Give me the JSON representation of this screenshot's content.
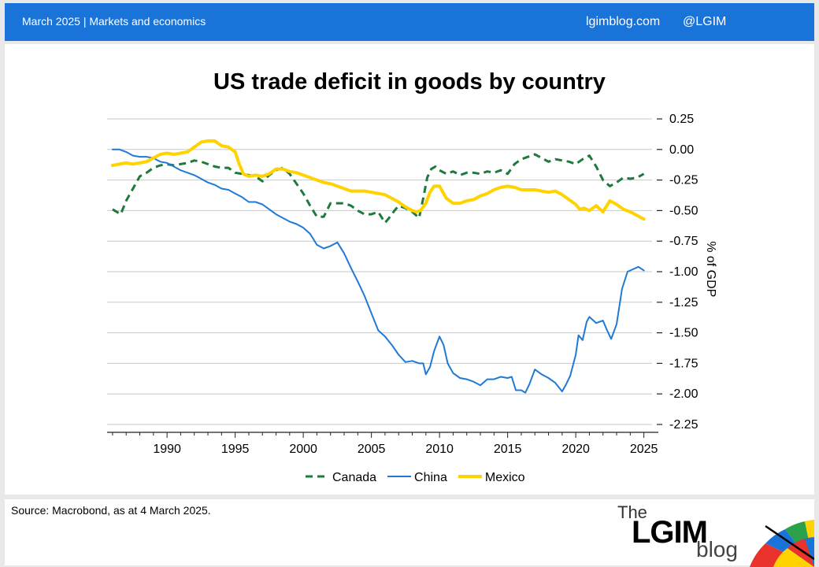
{
  "header": {
    "left_text": "March 2025 |  Markets and economics",
    "site": "lgimblog.com",
    "handle": "@LGIM"
  },
  "source": "Source: Macrobond,  as at 4 March 2025.",
  "logo": {
    "the": "The",
    "lgim": "LGIM",
    "blog": "blog"
  },
  "chart_data": {
    "type": "line",
    "title": "US trade deficit in goods by country",
    "xlabel": "",
    "ylabel": "% of GDP",
    "xlim": [
      1985.6,
      2025.6
    ],
    "ylim": [
      -2.25,
      0.25
    ],
    "x_ticks": [
      1990,
      1995,
      2000,
      2005,
      2010,
      2015,
      2020,
      2025
    ],
    "y_ticks": [
      0.25,
      0.0,
      -0.25,
      -0.5,
      -0.75,
      -1.0,
      -1.25,
      -1.5,
      -1.75,
      -2.0,
      -2.25
    ],
    "y_tick_labels": [
      "0.25",
      "0.00",
      "-0.25",
      "-0.50",
      "-0.75",
      "-1.00",
      "-1.25",
      "-1.50",
      "-1.75",
      "-2.00",
      "-2.25"
    ],
    "grid": true,
    "legend_position": "bottom",
    "colors": {
      "Canada": "#1e7a3c",
      "China": "#1f7ad6",
      "Mexico": "#ffd200"
    },
    "series": [
      {
        "name": "Canada",
        "style": "dashed",
        "x": [
          1986.0,
          1986.6,
          1987.0,
          1987.6,
          1988.0,
          1988.5,
          1989.0,
          1989.5,
          1990.0,
          1990.5,
          1991.0,
          1991.5,
          1992.0,
          1992.5,
          1993.0,
          1993.5,
          1994.0,
          1994.5,
          1995.0,
          1995.5,
          1996.0,
          1996.5,
          1997.0,
          1997.5,
          1998.0,
          1998.5,
          1999.0,
          1999.5,
          2000.0,
          2000.5,
          2001.0,
          2001.5,
          2002.0,
          2002.5,
          2003.0,
          2003.5,
          2004.0,
          2004.5,
          2005.0,
          2005.5,
          2006.0,
          2006.3,
          2006.7,
          2007.0,
          2007.5,
          2008.0,
          2008.5,
          2008.8,
          2009.1,
          2009.4,
          2009.7,
          2010.0,
          2010.5,
          2011.0,
          2011.5,
          2012.0,
          2012.5,
          2013.0,
          2013.5,
          2014.0,
          2014.5,
          2015.0,
          2015.5,
          2016.0,
          2016.5,
          2017.0,
          2017.5,
          2018.0,
          2018.5,
          2019.0,
          2019.5,
          2020.0,
          2020.5,
          2021.0,
          2021.5,
          2022.0,
          2022.5,
          2023.0,
          2023.5,
          2024.0,
          2024.5,
          2025.0
        ],
        "y": [
          -0.49,
          -0.53,
          -0.42,
          -0.3,
          -0.22,
          -0.19,
          -0.15,
          -0.13,
          -0.12,
          -0.13,
          -0.12,
          -0.11,
          -0.09,
          -0.1,
          -0.12,
          -0.14,
          -0.15,
          -0.15,
          -0.19,
          -0.2,
          -0.21,
          -0.22,
          -0.26,
          -0.21,
          -0.17,
          -0.15,
          -0.2,
          -0.28,
          -0.36,
          -0.46,
          -0.55,
          -0.55,
          -0.44,
          -0.44,
          -0.44,
          -0.46,
          -0.5,
          -0.53,
          -0.53,
          -0.51,
          -0.6,
          -0.56,
          -0.5,
          -0.46,
          -0.48,
          -0.51,
          -0.56,
          -0.4,
          -0.23,
          -0.16,
          -0.14,
          -0.17,
          -0.2,
          -0.18,
          -0.21,
          -0.19,
          -0.19,
          -0.2,
          -0.18,
          -0.19,
          -0.17,
          -0.2,
          -0.12,
          -0.08,
          -0.06,
          -0.04,
          -0.07,
          -0.1,
          -0.08,
          -0.09,
          -0.1,
          -0.12,
          -0.08,
          -0.05,
          -0.14,
          -0.25,
          -0.3,
          -0.27,
          -0.23,
          -0.24,
          -0.23,
          -0.2
        ]
      },
      {
        "name": "China",
        "style": "solid",
        "x": [
          1986.0,
          1986.5,
          1987.0,
          1987.5,
          1988.0,
          1988.5,
          1989.0,
          1989.5,
          1990.0,
          1990.5,
          1991.0,
          1991.5,
          1992.0,
          1992.5,
          1993.0,
          1993.5,
          1994.0,
          1994.5,
          1995.0,
          1995.5,
          1996.0,
          1996.5,
          1997.0,
          1997.5,
          1998.0,
          1998.5,
          1999.0,
          1999.5,
          2000.0,
          2000.5,
          2001.0,
          2001.5,
          2002.0,
          2002.5,
          2003.0,
          2003.5,
          2004.0,
          2004.5,
          2005.0,
          2005.5,
          2006.0,
          2006.5,
          2007.0,
          2007.5,
          2008.0,
          2008.5,
          2008.8,
          2009.0,
          2009.3,
          2009.6,
          2010.0,
          2010.3,
          2010.6,
          2011.0,
          2011.5,
          2012.0,
          2012.5,
          2013.0,
          2013.5,
          2014.0,
          2014.5,
          2015.0,
          2015.3,
          2015.6,
          2016.0,
          2016.3,
          2016.6,
          2017.0,
          2017.5,
          2018.0,
          2018.5,
          2019.0,
          2019.3,
          2019.6,
          2020.0,
          2020.2,
          2020.5,
          2020.8,
          2021.0,
          2021.5,
          2022.0,
          2022.3,
          2022.6,
          2023.0,
          2023.4,
          2023.8,
          2024.2,
          2024.6,
          2025.0
        ],
        "y": [
          0.0,
          0.0,
          -0.02,
          -0.05,
          -0.06,
          -0.06,
          -0.07,
          -0.1,
          -0.11,
          -0.14,
          -0.17,
          -0.19,
          -0.21,
          -0.24,
          -0.27,
          -0.29,
          -0.32,
          -0.33,
          -0.36,
          -0.39,
          -0.43,
          -0.43,
          -0.45,
          -0.49,
          -0.53,
          -0.56,
          -0.59,
          -0.61,
          -0.64,
          -0.69,
          -0.78,
          -0.81,
          -0.79,
          -0.76,
          -0.85,
          -0.97,
          -1.08,
          -1.2,
          -1.34,
          -1.48,
          -1.53,
          -1.6,
          -1.68,
          -1.74,
          -1.73,
          -1.75,
          -1.75,
          -1.84,
          -1.78,
          -1.65,
          -1.53,
          -1.6,
          -1.75,
          -1.83,
          -1.87,
          -1.88,
          -1.9,
          -1.93,
          -1.88,
          -1.88,
          -1.86,
          -1.87,
          -1.86,
          -1.97,
          -1.97,
          -1.99,
          -1.92,
          -1.8,
          -1.84,
          -1.87,
          -1.91,
          -1.98,
          -1.92,
          -1.85,
          -1.68,
          -1.52,
          -1.56,
          -1.41,
          -1.37,
          -1.42,
          -1.4,
          -1.48,
          -1.55,
          -1.43,
          -1.14,
          -1.0,
          -0.98,
          -0.96,
          -0.99
        ]
      },
      {
        "name": "Mexico",
        "style": "solid",
        "x": [
          1986.0,
          1986.5,
          1987.0,
          1987.5,
          1988.0,
          1988.5,
          1989.0,
          1989.5,
          1990.0,
          1990.5,
          1991.0,
          1991.5,
          1992.0,
          1992.5,
          1993.0,
          1993.5,
          1994.0,
          1994.5,
          1995.0,
          1995.3,
          1995.6,
          1996.0,
          1996.5,
          1997.0,
          1997.5,
          1998.0,
          1998.5,
          1999.0,
          1999.5,
          2000.0,
          2000.5,
          2001.0,
          2001.5,
          2002.0,
          2002.5,
          2003.0,
          2003.5,
          2004.0,
          2004.5,
          2005.0,
          2005.5,
          2006.0,
          2006.5,
          2007.0,
          2007.5,
          2008.0,
          2008.3,
          2008.6,
          2009.0,
          2009.3,
          2009.6,
          2010.0,
          2010.5,
          2011.0,
          2011.5,
          2012.0,
          2012.5,
          2013.0,
          2013.5,
          2014.0,
          2014.5,
          2015.0,
          2015.5,
          2016.0,
          2016.5,
          2017.0,
          2017.5,
          2018.0,
          2018.5,
          2019.0,
          2019.5,
          2020.0,
          2020.3,
          2020.6,
          2021.0,
          2021.5,
          2022.0,
          2022.5,
          2023.0,
          2023.5,
          2024.0,
          2024.5,
          2025.0
        ],
        "y": [
          -0.13,
          -0.12,
          -0.11,
          -0.12,
          -0.11,
          -0.1,
          -0.07,
          -0.04,
          -0.03,
          -0.04,
          -0.03,
          -0.02,
          0.02,
          0.06,
          0.07,
          0.07,
          0.03,
          0.02,
          -0.02,
          -0.12,
          -0.2,
          -0.22,
          -0.21,
          -0.22,
          -0.2,
          -0.16,
          -0.16,
          -0.18,
          -0.19,
          -0.21,
          -0.23,
          -0.25,
          -0.27,
          -0.28,
          -0.3,
          -0.32,
          -0.34,
          -0.34,
          -0.34,
          -0.35,
          -0.36,
          -0.37,
          -0.4,
          -0.43,
          -0.47,
          -0.5,
          -0.51,
          -0.5,
          -0.44,
          -0.35,
          -0.3,
          -0.3,
          -0.4,
          -0.44,
          -0.44,
          -0.42,
          -0.41,
          -0.38,
          -0.36,
          -0.33,
          -0.31,
          -0.3,
          -0.31,
          -0.33,
          -0.33,
          -0.33,
          -0.34,
          -0.35,
          -0.34,
          -0.37,
          -0.41,
          -0.45,
          -0.49,
          -0.48,
          -0.5,
          -0.46,
          -0.51,
          -0.42,
          -0.45,
          -0.49,
          -0.51,
          -0.54,
          -0.57
        ]
      }
    ]
  }
}
